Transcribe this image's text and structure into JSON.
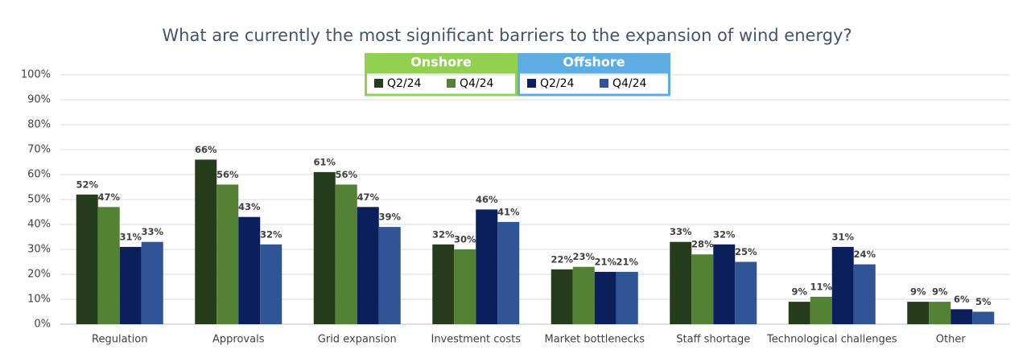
{
  "chart_data": {
    "type": "bar",
    "title": "What are currently the most significant barriers to the expansion of wind energy?",
    "categories": [
      "Regulation",
      "Approvals",
      "Grid expansion",
      "Investment costs",
      "Market bottlenecks",
      "Staff shortage",
      "Technological challenges",
      "Other"
    ],
    "legend_groups": [
      {
        "title": "Onshore",
        "color": "#92d050"
      },
      {
        "title": "Offshore",
        "color": "#5dade2"
      }
    ],
    "series": [
      {
        "name": "Q2/24",
        "color": "#263d1c",
        "values": [
          52,
          66,
          61,
          32,
          22,
          33,
          9,
          9
        ],
        "value_labels": [
          "52%",
          "66%",
          "61%",
          "32%",
          "22%",
          "33%",
          "9%",
          "9%"
        ]
      },
      {
        "name": "Q4/24",
        "color": "#548235",
        "values": [
          47,
          56,
          56,
          30,
          23,
          28,
          11,
          9
        ],
        "value_labels": [
          "47%",
          "56%",
          "56%",
          "30%",
          "23%",
          "28%",
          "11%",
          "9%"
        ]
      },
      {
        "name": "Q2/24",
        "color": "#0b1f5c",
        "values": [
          31,
          43,
          47,
          46,
          21,
          32,
          31,
          6
        ],
        "value_labels": [
          "31%",
          "43%",
          "47%",
          "46%",
          "21%",
          "32%",
          "31%",
          "6%"
        ]
      },
      {
        "name": "Q4/24",
        "color": "#2f5597",
        "values": [
          33,
          32,
          39,
          41,
          21,
          25,
          24,
          5
        ],
        "value_labels": [
          "33%",
          "32%",
          "39%",
          "41%",
          "21%",
          "25%",
          "24%",
          "5%"
        ]
      }
    ],
    "ylim": [
      0,
      100
    ],
    "yticks": [
      {
        "value": 0,
        "label": "0%"
      },
      {
        "value": 10,
        "label": "10%"
      },
      {
        "value": 20,
        "label": "20%"
      },
      {
        "value": 30,
        "label": "30%"
      },
      {
        "value": 40,
        "label": "40%"
      },
      {
        "value": 50,
        "label": "50%"
      },
      {
        "value": 60,
        "label": "60%"
      },
      {
        "value": 70,
        "label": "70%"
      },
      {
        "value": 80,
        "label": "80%"
      },
      {
        "value": 90,
        "label": "90%"
      },
      {
        "value": 100,
        "label": "100%"
      }
    ],
    "grid": true
  }
}
